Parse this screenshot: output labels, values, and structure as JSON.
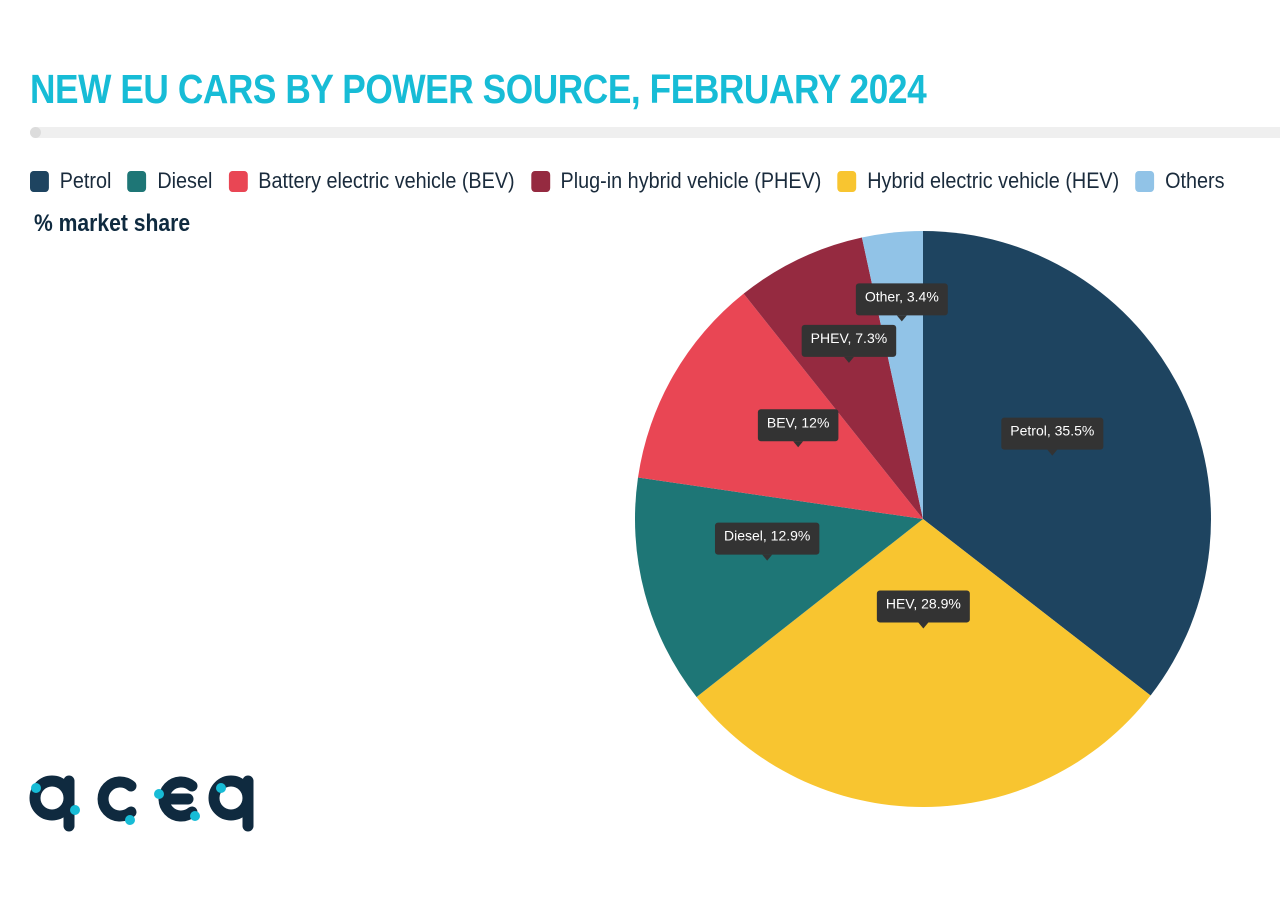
{
  "header": {
    "title": "NEW EU CARS BY POWER SOURCE, FEBRUARY 2024",
    "subtitle": "% market share"
  },
  "legend": [
    {
      "label": "Petrol",
      "color": "#1e4460"
    },
    {
      "label": "Diesel",
      "color": "#1e7676"
    },
    {
      "label": "Battery electric vehicle (BEV)",
      "color": "#e94654"
    },
    {
      "label": "Plug-in hybrid vehicle (PHEV)",
      "color": "#952a40"
    },
    {
      "label": "Hybrid electric vehicle (HEV)",
      "color": "#f8c530"
    },
    {
      "label": "Others",
      "color": "#91c3e7"
    }
  ],
  "logo": {
    "text": "acea",
    "color": "#0f2a3f",
    "dot_color": "#17bcd6"
  },
  "chart_data": {
    "type": "pie",
    "title": "NEW EU CARS BY POWER SOURCE, FEBRUARY 2024",
    "subtitle": "% market share",
    "legend_position": "top",
    "unit": "%",
    "slices": [
      {
        "name": "Petrol",
        "value": 35.5,
        "label": "Petrol, 35.5%",
        "color": "#1e4460"
      },
      {
        "name": "HEV",
        "value": 28.9,
        "label": "HEV, 28.9%",
        "color": "#f8c530"
      },
      {
        "name": "Diesel",
        "value": 12.9,
        "label": "Diesel, 12.9%",
        "color": "#1e7676"
      },
      {
        "name": "BEV",
        "value": 12,
        "label": "BEV, 12%",
        "color": "#e94654"
      },
      {
        "name": "PHEV",
        "value": 7.3,
        "label": "PHEV, 7.3%",
        "color": "#952a40"
      },
      {
        "name": "Other",
        "value": 3.4,
        "label": "Other, 3.4%",
        "color": "#91c3e7"
      }
    ]
  }
}
